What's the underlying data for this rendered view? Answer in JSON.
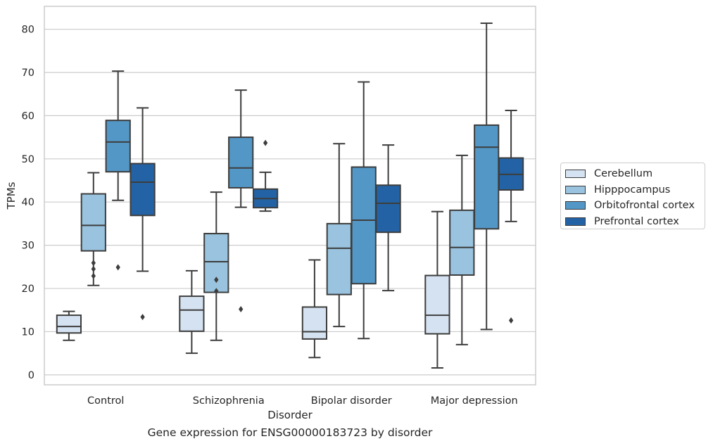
{
  "caption": "Gene expression for ENSG00000183723 by disorder",
  "chart_data": {
    "type": "box",
    "xlabel": "Disorder",
    "ylabel": "TPMs",
    "ylim": [
      -2.3,
      85.3
    ],
    "yticks": [
      0,
      10,
      20,
      30,
      40,
      50,
      60,
      70,
      80
    ],
    "categories": [
      "Control",
      "Schizophrenia",
      "Bipolar disorder",
      "Major depression"
    ],
    "grid": true,
    "legend_position": "right",
    "series": [
      {
        "name": "Cerebellum",
        "color": "#d5e2f1",
        "boxes": [
          {
            "whislo": 8,
            "q1": 9.7,
            "med": 11.2,
            "q3": 13.8,
            "whishi": 14.7,
            "fliers": []
          },
          {
            "whislo": 5,
            "q1": 10.1,
            "med": 15,
            "q3": 18.2,
            "whishi": 24.1,
            "fliers": []
          },
          {
            "whislo": 4,
            "q1": 8.3,
            "med": 10,
            "q3": 15.7,
            "whishi": 26.6,
            "fliers": []
          },
          {
            "whislo": 1.6,
            "q1": 9.5,
            "med": 13.8,
            "q3": 23,
            "whishi": 37.8,
            "fliers": []
          }
        ]
      },
      {
        "name": "Hipppocampus",
        "color": "#99c3de",
        "boxes": [
          {
            "whislo": 20.7,
            "q1": 28.7,
            "med": 34.6,
            "q3": 41.9,
            "whishi": 46.8,
            "fliers": [
              22.9,
              24.5,
              25.9
            ]
          },
          {
            "whislo": 8,
            "q1": 19.1,
            "med": 26.2,
            "q3": 32.7,
            "whishi": 42.3,
            "fliers": [
              19.4,
              22
            ]
          },
          {
            "whislo": 11.2,
            "q1": 18.6,
            "med": 29.3,
            "q3": 35,
            "whishi": 53.5,
            "fliers": []
          },
          {
            "whislo": 7,
            "q1": 23.1,
            "med": 29.5,
            "q3": 38.1,
            "whishi": 50.8,
            "fliers": []
          }
        ]
      },
      {
        "name": "Orbitofrontal cortex",
        "color": "#5397c6",
        "boxes": [
          {
            "whislo": 40.4,
            "q1": 47,
            "med": 53.9,
            "q3": 58.9,
            "whishi": 70.3,
            "fliers": [
              24.9
            ]
          },
          {
            "whislo": 38.8,
            "q1": 43.3,
            "med": 47.9,
            "q3": 55,
            "whishi": 65.9,
            "fliers": [
              15.2
            ]
          },
          {
            "whislo": 8.4,
            "q1": 21.1,
            "med": 35.8,
            "q3": 48.1,
            "whishi": 67.8,
            "fliers": []
          },
          {
            "whislo": 10.5,
            "q1": 33.8,
            "med": 52.7,
            "q3": 57.8,
            "whishi": 81.4,
            "fliers": []
          }
        ]
      },
      {
        "name": "Prefrontal cortex",
        "color": "#2363a5",
        "boxes": [
          {
            "whislo": 24,
            "q1": 36.9,
            "med": 44.6,
            "q3": 48.9,
            "whishi": 61.8,
            "fliers": [
              13.4
            ]
          },
          {
            "whislo": 37.9,
            "q1": 38.7,
            "med": 40.8,
            "q3": 43,
            "whishi": 46.9,
            "fliers": [
              53.7
            ]
          },
          {
            "whislo": 19.5,
            "q1": 33,
            "med": 39.7,
            "q3": 43.9,
            "whishi": 53.2,
            "fliers": []
          },
          {
            "whislo": 35.5,
            "q1": 42.8,
            "med": 46.4,
            "q3": 50.2,
            "whishi": 61.2,
            "fliers": [
              12.6
            ]
          }
        ]
      }
    ]
  }
}
